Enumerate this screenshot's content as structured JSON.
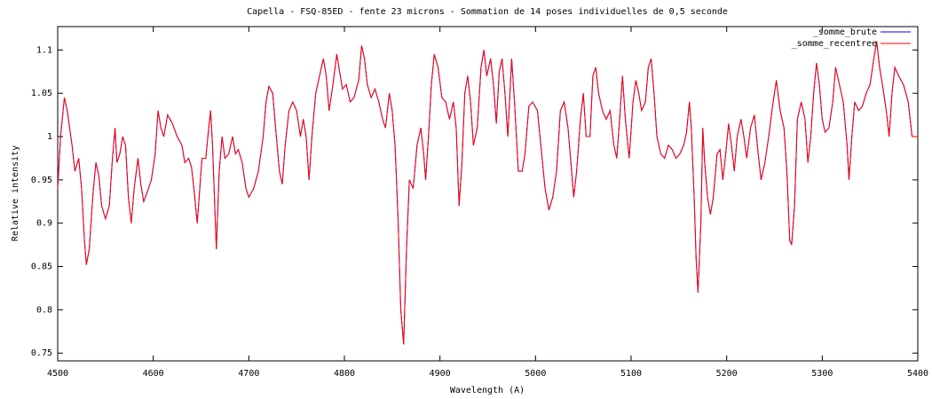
{
  "chart_data": {
    "type": "line",
    "title": "Capella - FSQ-85ED - fente 23 microns - Sommation de 14 poses individuelles de 0,5 seconde",
    "xlabel": "Wavelength (A)",
    "ylabel": "Relative intensity",
    "xlim": [
      4500,
      5400
    ],
    "ylim": [
      0.741,
      1.127
    ],
    "xticks": [
      4500,
      4600,
      4700,
      4800,
      4900,
      5000,
      5100,
      5200,
      5300,
      5400
    ],
    "yticks": [
      0.75,
      0.8,
      0.85,
      0.9,
      0.95,
      1,
      1.05,
      1.1
    ],
    "legend": "top-right",
    "x": [
      4500,
      4503,
      4507,
      4510,
      4515,
      4518,
      4522,
      4525,
      4528,
      4530,
      4533,
      4537,
      4540,
      4543,
      4546,
      4550,
      4554,
      4557,
      4560,
      4562,
      4565,
      4568,
      4571,
      4574,
      4577,
      4580,
      4584,
      4587,
      4590,
      4595,
      4598,
      4602,
      4605,
      4608,
      4611,
      4615,
      4620,
      4625,
      4630,
      4633,
      4637,
      4640,
      4643,
      4646,
      4648,
      4651,
      4655,
      4658,
      4660,
      4662,
      4664,
      4666,
      4669,
      4672,
      4675,
      4679,
      4683,
      4686,
      4689,
      4693,
      4697,
      4700,
      4705,
      4710,
      4715,
      4718,
      4721,
      4725,
      4728,
      4732,
      4735,
      4738,
      4742,
      4746,
      4750,
      4754,
      4757,
      4760,
      4763,
      4766,
      4770,
      4774,
      4778,
      4781,
      4784,
      4788,
      4792,
      4795,
      4798,
      4802,
      4806,
      4810,
      4815,
      4818,
      4821,
      4824,
      4828,
      4832,
      4836,
      4840,
      4843,
      4847,
      4850,
      4853,
      4856,
      4859,
      4862,
      4865,
      4868,
      4872,
      4876,
      4880,
      4883,
      4885,
      4888,
      4891,
      4894,
      4898,
      4902,
      4906,
      4910,
      4914,
      4917,
      4920,
      4923,
      4926,
      4929,
      4932,
      4935,
      4939,
      4943,
      4946,
      4949,
      4953,
      4956,
      4959,
      4962,
      4965,
      4968,
      4971,
      4975,
      4978,
      4982,
      4986,
      4989,
      4993,
      4997,
      5002,
      5006,
      5010,
      5014,
      5018,
      5022,
      5026,
      5030,
      5034,
      5037,
      5040,
      5043,
      5047,
      5050,
      5053,
      5057,
      5060,
      5063,
      5066,
      5070,
      5074,
      5078,
      5082,
      5085,
      5088,
      5091,
      5094,
      5098,
      5102,
      5105,
      5108,
      5111,
      5115,
      5118,
      5121,
      5124,
      5127,
      5131,
      5135,
      5139,
      5143,
      5147,
      5151,
      5155,
      5158,
      5161,
      5163,
      5166,
      5168,
      5170,
      5173,
      5175,
      5177,
      5180,
      5183,
      5186,
      5190,
      5193,
      5196,
      5199,
      5202,
      5205,
      5208,
      5211,
      5215,
      5218,
      5221,
      5225,
      5229,
      5233,
      5236,
      5240,
      5244,
      5248,
      5252,
      5256,
      5260,
      5263,
      5266,
      5268,
      5271,
      5274,
      5278,
      5282,
      5285,
      5288,
      5291,
      5294,
      5297,
      5300,
      5303,
      5307,
      5311,
      5314,
      5318,
      5322,
      5326,
      5328,
      5331,
      5334,
      5338,
      5342,
      5346,
      5350,
      5354,
      5357,
      5360,
      5363,
      5367,
      5370,
      5373,
      5376,
      5380,
      5385,
      5390,
      5394,
      5398,
      5400
    ],
    "series": [
      {
        "name": "_somme_brute",
        "color": "#0000ff",
        "values": [
          0.94,
          1.0,
          1.045,
          1.03,
          0.99,
          0.96,
          0.975,
          0.94,
          0.88,
          0.852,
          0.87,
          0.935,
          0.97,
          0.955,
          0.92,
          0.905,
          0.92,
          0.97,
          1.01,
          0.97,
          0.98,
          1.0,
          0.99,
          0.93,
          0.9,
          0.94,
          0.975,
          0.945,
          0.925,
          0.94,
          0.95,
          0.98,
          1.03,
          1.01,
          1.0,
          1.025,
          1.015,
          1.0,
          0.99,
          0.97,
          0.975,
          0.965,
          0.935,
          0.9,
          0.93,
          0.975,
          0.975,
          1.01,
          1.03,
          0.99,
          0.93,
          0.87,
          0.96,
          1.0,
          0.975,
          0.98,
          1.0,
          0.98,
          0.985,
          0.97,
          0.94,
          0.93,
          0.94,
          0.96,
          1.0,
          1.04,
          1.058,
          1.05,
          1.01,
          0.96,
          0.945,
          0.99,
          1.03,
          1.04,
          1.03,
          1.0,
          1.02,
          1.0,
          0.95,
          1.0,
          1.05,
          1.07,
          1.09,
          1.07,
          1.03,
          1.06,
          1.095,
          1.075,
          1.055,
          1.06,
          1.04,
          1.045,
          1.065,
          1.105,
          1.09,
          1.06,
          1.045,
          1.055,
          1.04,
          1.02,
          1.01,
          1.05,
          1.03,
          0.99,
          0.91,
          0.8,
          0.76,
          0.87,
          0.95,
          0.94,
          0.99,
          1.01,
          0.98,
          0.95,
          1.0,
          1.06,
          1.095,
          1.08,
          1.045,
          1.04,
          1.02,
          1.04,
          1.01,
          0.92,
          0.97,
          1.05,
          1.07,
          1.04,
          0.99,
          1.01,
          1.08,
          1.1,
          1.07,
          1.09,
          1.06,
          1.015,
          1.075,
          1.09,
          1.05,
          1.0,
          1.09,
          1.04,
          0.96,
          0.96,
          0.98,
          1.035,
          1.04,
          1.03,
          0.985,
          0.94,
          0.915,
          0.93,
          0.96,
          1.03,
          1.04,
          1.01,
          0.97,
          0.93,
          0.96,
          1.02,
          1.05,
          1.0,
          1.0,
          1.07,
          1.08,
          1.05,
          1.03,
          1.02,
          1.03,
          0.99,
          0.975,
          1.02,
          1.07,
          1.02,
          0.975,
          1.04,
          1.065,
          1.05,
          1.03,
          1.04,
          1.08,
          1.09,
          1.05,
          1.0,
          0.98,
          0.975,
          0.99,
          0.985,
          0.975,
          0.98,
          0.99,
          1.005,
          1.04,
          1.01,
          0.93,
          0.86,
          0.82,
          0.9,
          1.01,
          0.97,
          0.93,
          0.91,
          0.93,
          0.98,
          0.985,
          0.95,
          0.98,
          1.015,
          0.99,
          0.96,
          1.0,
          1.02,
          1.0,
          0.975,
          1.01,
          1.025,
          0.98,
          0.95,
          0.97,
          1.0,
          1.035,
          1.065,
          1.03,
          1.01,
          0.96,
          0.88,
          0.875,
          0.92,
          1.02,
          1.04,
          1.02,
          0.97,
          1.0,
          1.05,
          1.085,
          1.06,
          1.02,
          1.005,
          1.01,
          1.04,
          1.08,
          1.06,
          1.04,
          0.99,
          0.95,
          1.0,
          1.04,
          1.03,
          1.035,
          1.05,
          1.06,
          1.09,
          1.11,
          1.08,
          1.06,
          1.03,
          1.0,
          1.05,
          1.08,
          1.07,
          1.06,
          1.04,
          1.0,
          1.0,
          1.0
        ]
      },
      {
        "name": "_somme_recentree",
        "color": "#ff0000",
        "values": [
          0.94,
          1.0,
          1.045,
          1.03,
          0.99,
          0.96,
          0.975,
          0.94,
          0.88,
          0.852,
          0.87,
          0.935,
          0.97,
          0.955,
          0.92,
          0.905,
          0.92,
          0.97,
          1.01,
          0.97,
          0.98,
          1.0,
          0.99,
          0.93,
          0.9,
          0.94,
          0.975,
          0.945,
          0.925,
          0.94,
          0.95,
          0.98,
          1.03,
          1.01,
          1.0,
          1.025,
          1.015,
          1.0,
          0.99,
          0.97,
          0.975,
          0.965,
          0.935,
          0.9,
          0.93,
          0.975,
          0.975,
          1.01,
          1.03,
          0.99,
          0.93,
          0.87,
          0.96,
          1.0,
          0.975,
          0.98,
          1.0,
          0.98,
          0.985,
          0.97,
          0.94,
          0.93,
          0.94,
          0.96,
          1.0,
          1.04,
          1.058,
          1.05,
          1.01,
          0.96,
          0.945,
          0.99,
          1.03,
          1.04,
          1.03,
          1.0,
          1.02,
          1.0,
          0.95,
          1.0,
          1.05,
          1.07,
          1.09,
          1.07,
          1.03,
          1.06,
          1.095,
          1.075,
          1.055,
          1.06,
          1.04,
          1.045,
          1.065,
          1.105,
          1.09,
          1.06,
          1.045,
          1.055,
          1.04,
          1.02,
          1.01,
          1.05,
          1.03,
          0.99,
          0.91,
          0.8,
          0.76,
          0.87,
          0.95,
          0.94,
          0.99,
          1.01,
          0.98,
          0.95,
          1.0,
          1.06,
          1.095,
          1.08,
          1.045,
          1.04,
          1.02,
          1.04,
          1.01,
          0.92,
          0.97,
          1.05,
          1.07,
          1.04,
          0.99,
          1.01,
          1.08,
          1.1,
          1.07,
          1.09,
          1.06,
          1.015,
          1.075,
          1.09,
          1.05,
          1.0,
          1.09,
          1.04,
          0.96,
          0.96,
          0.98,
          1.035,
          1.04,
          1.03,
          0.985,
          0.94,
          0.915,
          0.93,
          0.96,
          1.03,
          1.04,
          1.01,
          0.97,
          0.93,
          0.96,
          1.02,
          1.05,
          1.0,
          1.0,
          1.07,
          1.08,
          1.05,
          1.03,
          1.02,
          1.03,
          0.99,
          0.975,
          1.02,
          1.07,
          1.02,
          0.975,
          1.04,
          1.065,
          1.05,
          1.03,
          1.04,
          1.08,
          1.09,
          1.05,
          1.0,
          0.98,
          0.975,
          0.99,
          0.985,
          0.975,
          0.98,
          0.99,
          1.005,
          1.04,
          1.01,
          0.93,
          0.86,
          0.82,
          0.9,
          1.01,
          0.97,
          0.93,
          0.91,
          0.93,
          0.98,
          0.985,
          0.95,
          0.98,
          1.015,
          0.99,
          0.96,
          1.0,
          1.02,
          1.0,
          0.975,
          1.01,
          1.025,
          0.98,
          0.95,
          0.97,
          1.0,
          1.035,
          1.065,
          1.03,
          1.01,
          0.96,
          0.88,
          0.875,
          0.92,
          1.02,
          1.04,
          1.02,
          0.97,
          1.0,
          1.05,
          1.085,
          1.06,
          1.02,
          1.005,
          1.01,
          1.04,
          1.08,
          1.06,
          1.04,
          0.99,
          0.95,
          1.0,
          1.04,
          1.03,
          1.035,
          1.05,
          1.06,
          1.09,
          1.11,
          1.08,
          1.06,
          1.03,
          1.0,
          1.05,
          1.08,
          1.07,
          1.06,
          1.04,
          1.0,
          1.0,
          1.0
        ]
      }
    ]
  }
}
